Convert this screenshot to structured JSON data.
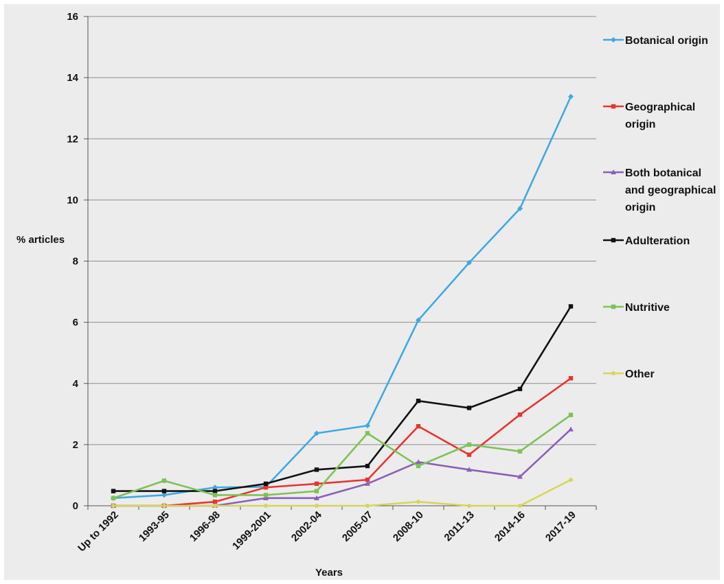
{
  "chart_data": {
    "type": "line",
    "categories": [
      "Up to 1992",
      "1993-95",
      "1996-98",
      "1999-2001",
      "2002-04",
      "2005-07",
      "2008-10",
      "2011-13",
      "2014-16",
      "2017-19"
    ],
    "series": [
      {
        "name": "Botanical origin",
        "name_lines": [
          "Botanical origin"
        ],
        "color": "#3fa9e0",
        "marker": "diamond",
        "values": [
          0.25,
          0.35,
          0.6,
          0.62,
          2.37,
          2.62,
          6.07,
          7.95,
          9.72,
          13.38
        ]
      },
      {
        "name": "Geographical origin",
        "name_lines": [
          "Geographical",
          "origin"
        ],
        "color": "#e8352f",
        "marker": "square",
        "values": [
          0.0,
          0.0,
          0.13,
          0.6,
          0.72,
          0.85,
          2.6,
          1.67,
          2.98,
          4.17
        ]
      },
      {
        "name": "Both botanical and geographical origin",
        "name_lines": [
          "Both botanical",
          "and geographical",
          "origin"
        ],
        "color": "#8a5fb8",
        "marker": "triangle",
        "values": [
          0.0,
          0.0,
          0.0,
          0.25,
          0.25,
          0.72,
          1.43,
          1.18,
          0.95,
          2.5
        ]
      },
      {
        "name": "Adulteration",
        "name_lines": [
          "Adulteration"
        ],
        "color": "#111111",
        "marker": "square",
        "values": [
          0.48,
          0.48,
          0.48,
          0.72,
          1.18,
          1.3,
          3.43,
          3.2,
          3.82,
          6.52
        ]
      },
      {
        "name": "Nutritive",
        "name_lines": [
          "Nutritive"
        ],
        "color": "#7cc354",
        "marker": "square",
        "values": [
          0.25,
          0.82,
          0.35,
          0.35,
          0.48,
          2.37,
          1.3,
          2.0,
          1.78,
          2.97
        ]
      },
      {
        "name": "Other",
        "name_lines": [
          "Other"
        ],
        "color": "#d6d65a",
        "marker": "circle",
        "values": [
          0.0,
          0.0,
          0.0,
          0.0,
          0.0,
          0.0,
          0.13,
          0.0,
          0.0,
          0.85
        ]
      }
    ],
    "xlabel": "Years",
    "ylabel": "% articles",
    "ylim": [
      0,
      16
    ],
    "yticks": [
      0,
      2,
      4,
      6,
      8,
      10,
      12,
      14,
      16
    ],
    "grid": "horizontal",
    "legend_position": "right"
  }
}
